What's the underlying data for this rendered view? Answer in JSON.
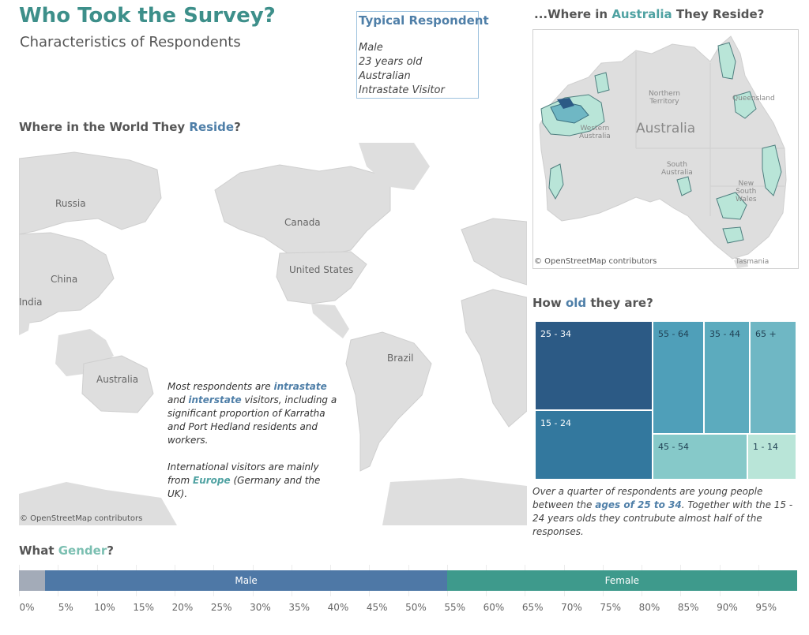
{
  "header": {
    "title": "Who Took the Survey?",
    "subtitle": "Characteristics of Respondents"
  },
  "typical_respondent": {
    "title": "Typical Respondent",
    "lines": [
      "Male",
      "23 years old",
      "Australian",
      "Intrastate Visitor"
    ]
  },
  "world_section": {
    "title_pre": "Where in the World They ",
    "title_hl": "Reside",
    "title_post": "?",
    "labels": [
      "Russia",
      "Canada",
      "United States",
      "China",
      "India",
      "Australia",
      "Brazil"
    ],
    "credit": "© OpenStreetMap contributors",
    "note": {
      "p1_a": "Most respondents are ",
      "p1_b": "intrastate",
      "p1_c": " and ",
      "p1_d": "interstate",
      "p1_e": " visitors, including a significant proportion of Karratha and Port Hedland residents and workers.",
      "p2_a": "International visitors are mainly from ",
      "p2_b": "Europe",
      "p2_c": " (Germany and the UK)."
    }
  },
  "australia_section": {
    "title_pre": "...Where in ",
    "title_hl": "Australia",
    "title_post": " They Reside?",
    "label_country": "Australia",
    "labels_states": {
      "nt_1": "Northern",
      "nt_2": "Territory",
      "wa_1": "Western",
      "wa_2": "Australia",
      "sa_1": "South",
      "sa_2": "Australia",
      "qld": "Queensland",
      "nsw_1": "New",
      "nsw_2": "South",
      "nsw_3": "Wales",
      "tas": "Tasmania"
    },
    "credit": "© OpenStreetMap contributors"
  },
  "age_section": {
    "title_pre": "How ",
    "title_hl": "old",
    "title_post": " they are?",
    "groups": [
      "25 - 34",
      "15 - 24",
      "55 - 64",
      "35 - 44",
      "65 +",
      "45 - 54",
      "1 - 14"
    ],
    "note": {
      "a": "Over a quarter of respondents are young people between the ",
      "b": "ages of 25 to 34",
      "c": ". Together with the 15 - 24 years olds they contrubute almost half of the responses."
    }
  },
  "gender_section": {
    "title_pre": "What ",
    "title_hl": "Gender",
    "title_post": "?",
    "segments": [
      {
        "label": "",
        "start_pct": 0,
        "end_pct": 3.4,
        "color": "#a3abb8"
      },
      {
        "label": "Male",
        "start_pct": 3.4,
        "end_pct": 55,
        "color": "#4e78a6"
      },
      {
        "label": "Female",
        "start_pct": 55,
        "end_pct": 100,
        "color": "#3e9a8c"
      }
    ],
    "ticks": [
      "0%",
      "5%",
      "10%",
      "15%",
      "20%",
      "25%",
      "30%",
      "35%",
      "40%",
      "45%",
      "50%",
      "55%",
      "60%",
      "65%",
      "70%",
      "75%",
      "80%",
      "85%",
      "90%",
      "95%"
    ]
  },
  "colors": {
    "title": "#3d8f8a",
    "accent_blue": "#4f7fa8",
    "accent_teal": "#4fa2a2",
    "age_25_34": "#2c5a85",
    "age_15_24": "#33789e",
    "age_55_64": "#4f9fb9",
    "age_35_44": "#5cabbe",
    "age_65_plus": "#6fb7c4",
    "age_45_54": "#86c9c9",
    "age_1_14": "#b9e5d8"
  }
}
